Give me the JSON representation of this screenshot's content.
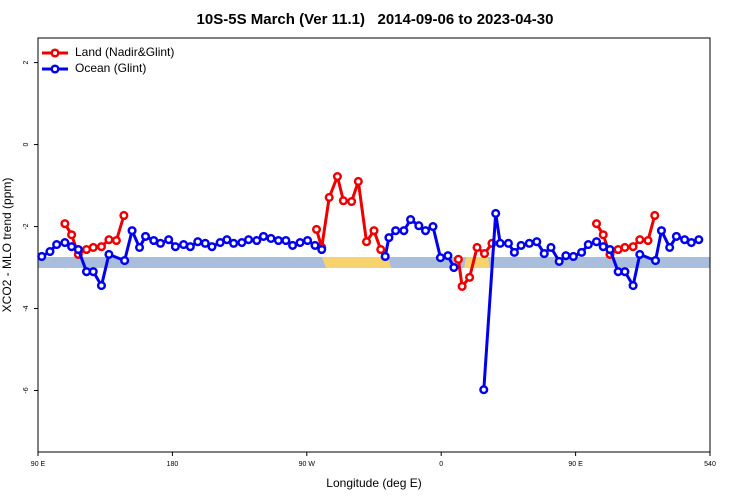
{
  "chart_data": {
    "type": "line",
    "title": "10S-5S March (Ver 11.1)   2014-09-06 to 2023-04-30",
    "x_label": "Longitude (deg E)",
    "y_label": "XCO2 - MLO trend (ppm)",
    "xlim": [
      90,
      540
    ],
    "xticks": [
      {
        "value": 90,
        "label": "90 E"
      },
      180,
      {
        "value": 270,
        "label": "90 W"
      },
      {
        "value": 360,
        "label": "0"
      },
      {
        "value": 450,
        "label": "90 E"
      },
      540
    ],
    "ylim": [
      -7.5,
      2.6
    ],
    "yticks": [
      2,
      0,
      -2,
      -4,
      -6
    ],
    "legend": "top-left",
    "series": [
      {
        "name": "Land (Nadir&Glint)",
        "color": "#ee0000",
        "x": [
          108,
          112.5,
          117,
          122.5,
          127,
          132.5,
          137.5,
          142.5,
          147.5,
          null,
          276.5,
          280,
          285,
          290.5,
          294.5,
          300,
          304.5,
          310,
          315,
          319.5,
          null,
          371.5,
          374,
          379,
          384,
          389,
          394,
          null,
          464,
          468.5,
          473,
          478.5,
          483,
          488.5,
          493,
          498.5,
          503
        ],
        "values": [
          -1.93,
          -2.2,
          -2.68,
          -2.56,
          -2.51,
          -2.49,
          -2.32,
          -2.34,
          -1.73,
          null,
          -2.07,
          -2.51,
          -1.29,
          -0.78,
          -1.37,
          -1.39,
          -0.9,
          -2.37,
          -2.1,
          -2.56,
          null,
          -2.8,
          -3.46,
          -3.24,
          -2.51,
          -2.66,
          -2.41,
          null,
          -1.93,
          -2.2,
          -2.68,
          -2.56,
          -2.51,
          -2.49,
          -2.32,
          -2.34,
          -1.73
        ]
      },
      {
        "name": "Ocean (Glint)",
        "color": "#0000ee",
        "x": [
          92.5,
          98,
          102.5,
          108,
          112.5,
          117,
          122.5,
          127,
          132.5,
          137.5,
          148,
          153,
          158,
          162,
          167.5,
          172,
          177.5,
          182,
          187.5,
          192,
          197,
          202,
          206.5,
          212,
          216.5,
          221,
          226.5,
          231,
          236.5,
          241,
          246,
          251,
          256,
          260.5,
          265.5,
          270.5,
          275.5,
          280,
          null,
          322.5,
          325,
          329.5,
          335,
          339.5,
          345,
          349.5,
          354.5,
          359.5,
          364.5,
          368.5,
          null,
          388.5,
          396.5,
          399.5,
          405,
          409,
          413.5,
          419,
          424,
          429,
          433.5,
          439,
          443.5,
          448.5,
          454,
          458.5,
          464,
          468.5,
          473,
          478.5,
          483,
          488.5,
          493,
          503.5,
          507.5,
          513,
          517.5,
          523,
          527.5,
          532.5
        ],
        "values": [
          -2.73,
          -2.61,
          -2.44,
          -2.39,
          -2.49,
          -2.56,
          -3.1,
          -3.1,
          -3.44,
          -2.68,
          -2.83,
          -2.1,
          -2.51,
          -2.24,
          -2.34,
          -2.41,
          -2.32,
          -2.49,
          -2.44,
          -2.49,
          -2.37,
          -2.41,
          -2.49,
          -2.39,
          -2.32,
          -2.41,
          -2.39,
          -2.32,
          -2.34,
          -2.24,
          -2.29,
          -2.34,
          -2.34,
          -2.46,
          -2.39,
          -2.34,
          -2.46,
          -2.56,
          null,
          -2.73,
          -2.27,
          -2.1,
          -2.1,
          -1.83,
          -1.98,
          -2.1,
          -2.0,
          -2.76,
          -2.71,
          -3.0,
          null,
          -5.98,
          -1.68,
          -2.41,
          -2.41,
          -2.63,
          -2.46,
          -2.41,
          -2.37,
          -2.66,
          -2.51,
          -2.85,
          -2.71,
          -2.73,
          -2.63,
          -2.44,
          -2.37,
          -2.49,
          -2.56,
          -3.1,
          -3.1,
          -3.44,
          -2.68,
          -2.83,
          -2.1,
          -2.51,
          -2.24,
          -2.32,
          -2.39,
          -2.32
        ]
      }
    ]
  }
}
